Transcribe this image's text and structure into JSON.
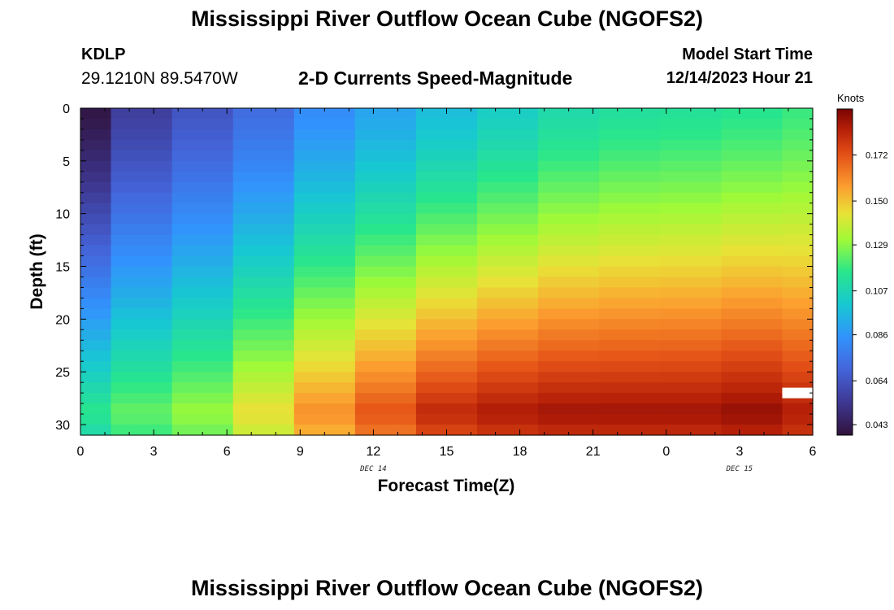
{
  "header": {
    "title": "Mississippi River Outflow Ocean Cube (NGOFS2)",
    "station_id": "KDLP",
    "station_coords": "29.1210N  89.5470W",
    "subtitle": "2-D Currents Speed-Magnitude",
    "start_label": "Model Start Time",
    "start_value": "12/14/2023 Hour 21"
  },
  "footer": {
    "title": "Mississippi River Outflow Ocean Cube (NGOFS2)"
  },
  "chart_data": {
    "type": "heatmap",
    "title": "2-D Currents Speed-Magnitude",
    "xlabel": "Forecast Time(Z)",
    "ylabel": "Depth (ft)",
    "x_ticks": [
      "0",
      "3",
      "6",
      "9",
      "12",
      "15",
      "18",
      "21",
      "0",
      "3",
      "6"
    ],
    "x_range_hours": [
      0,
      30
    ],
    "date_labels": [
      {
        "text": "DEC 14",
        "at_hour": 12
      },
      {
        "text": "DEC 15",
        "at_hour": 27
      }
    ],
    "y_ticks": [
      0,
      5,
      10,
      15,
      20,
      25,
      30
    ],
    "ylim": [
      0,
      31
    ],
    "y_inverted": true,
    "columns_x_hours": [
      0,
      2.5,
      5,
      7.5,
      10,
      12.5,
      15,
      17.5,
      20,
      22.5,
      25,
      27.5,
      30
    ],
    "depths_ft": [
      0,
      31
    ],
    "speed_top_knots": [
      0.04,
      0.056,
      0.064,
      0.072,
      0.083,
      0.09,
      0.097,
      0.103,
      0.109,
      0.112,
      0.113,
      0.115,
      0.118
    ],
    "speed_bottom_knots": [
      0.116,
      0.124,
      0.131,
      0.145,
      0.16,
      0.172,
      0.182,
      0.186,
      0.188,
      0.188,
      0.188,
      0.19,
      0.185
    ],
    "missing_cells": [
      {
        "x_hour": 30,
        "depth_ft": 27
      }
    ],
    "colorbar": {
      "units": "Knots",
      "min": 0.038,
      "max": 0.194,
      "ticks": [
        "0.043",
        "0.064",
        "0.086",
        "0.107",
        "0.129",
        "0.150",
        "0.172"
      ]
    },
    "grid": false,
    "legend": "colorbar-right"
  }
}
